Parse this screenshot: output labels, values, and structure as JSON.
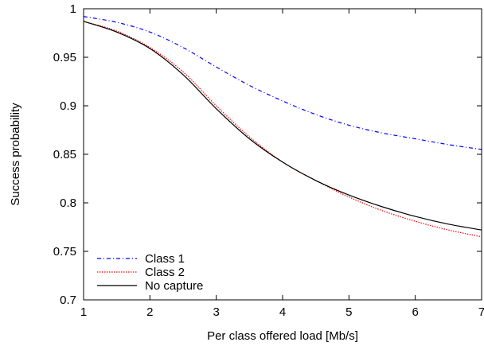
{
  "chart_data": {
    "type": "line",
    "title": "",
    "xlabel": "Per class offered load [Mb/s]",
    "ylabel": "Success probability",
    "xlim": [
      1,
      7
    ],
    "ylim": [
      0.7,
      1
    ],
    "xticks": [
      1,
      2,
      3,
      4,
      5,
      6,
      7
    ],
    "yticks": [
      0.7,
      0.75,
      0.8,
      0.85,
      0.9,
      0.95,
      1
    ],
    "xtick_labels": [
      "1",
      "2",
      "3",
      "4",
      "5",
      "6",
      "7"
    ],
    "ytick_labels": [
      "0.7",
      "0.75",
      "0.8",
      "0.85",
      "0.9",
      "0.95",
      "1"
    ],
    "grid": false,
    "legend_position": "bottom-left",
    "series": [
      {
        "name": "Class 1",
        "color": "#0000ff",
        "dash": "dash-dot",
        "x": [
          1,
          1.5,
          2,
          2.5,
          3,
          3.5,
          4,
          4.5,
          5,
          5.5,
          6,
          6.5,
          7
        ],
        "y": [
          0.992,
          0.986,
          0.976,
          0.96,
          0.94,
          0.921,
          0.905,
          0.891,
          0.88,
          0.872,
          0.866,
          0.86,
          0.855
        ]
      },
      {
        "name": "Class 2",
        "color": "#ff0000",
        "dash": "dotted",
        "x": [
          1,
          1.5,
          2,
          2.5,
          3,
          3.5,
          4,
          4.5,
          5,
          5.5,
          6,
          6.5,
          7
        ],
        "y": [
          0.987,
          0.977,
          0.96,
          0.935,
          0.9,
          0.868,
          0.842,
          0.823,
          0.806,
          0.792,
          0.781,
          0.772,
          0.765
        ]
      },
      {
        "name": "No capture",
        "color": "#000000",
        "dash": "solid",
        "x": [
          1,
          1.5,
          2,
          2.5,
          3,
          3.5,
          4,
          4.5,
          5,
          5.5,
          6,
          6.5,
          7
        ],
        "y": [
          0.987,
          0.976,
          0.959,
          0.932,
          0.897,
          0.866,
          0.842,
          0.823,
          0.808,
          0.796,
          0.786,
          0.778,
          0.772
        ]
      }
    ]
  }
}
